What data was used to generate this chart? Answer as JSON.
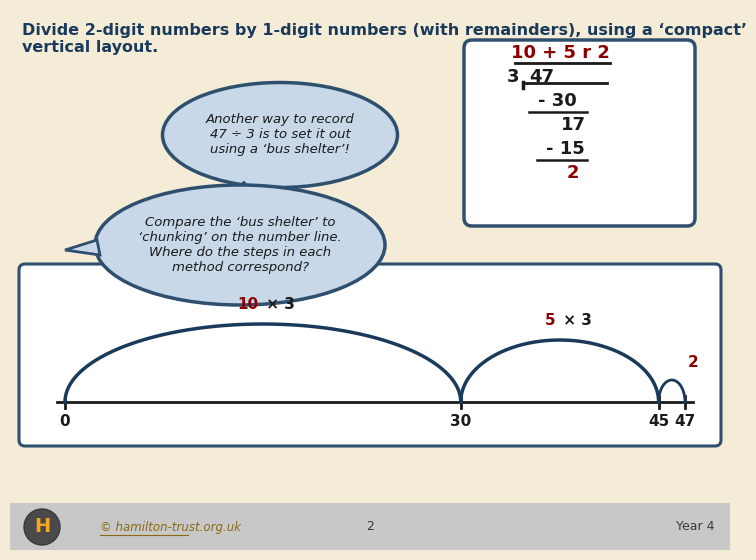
{
  "title": "Divide 2-digit numbers by 1-digit numbers (with remainders), using a ‘compact’\nvertical layout.",
  "title_color": "#1a3a5c",
  "bg_color": "#f5ecd7",
  "bubble1_text": "Another way to record\n47 ÷ 3 is to set it out\nusing a ‘bus shelter’!",
  "bubble2_text": "Compare the ‘bus shelter’ to\n‘chunking’ on the number line.\nWhere do the steps in each\nmethod correspond?",
  "bubble_fill": "#c8d8e8",
  "bubble_edge": "#2f4f6f",
  "division_box_bg": "#ffffff",
  "division_box_edge": "#2f4f6f",
  "div_answer_color": "#8b0000",
  "div_black_color": "#1a1a1a",
  "arc1_label_color": "#8b0000",
  "arc2_label_color": "#8b0000",
  "remainder_color": "#8b0000",
  "footer_text": "© hamilton-trust.org.uk",
  "footer_page": "2",
  "footer_year": "Year 4",
  "footer_link_color": "#8b6914",
  "hamilton_circle_color": "#4a4a4a",
  "hamilton_h_color": "#f5a623",
  "nl_dark": "#1a3a5c",
  "nl_tick_color": "#1a1a1a"
}
